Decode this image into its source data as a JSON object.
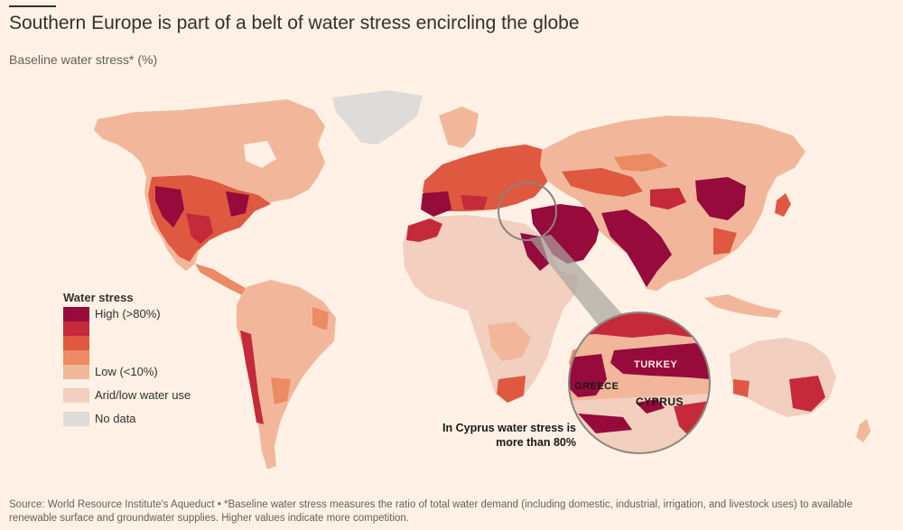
{
  "header": {
    "title": "Southern Europe is part of a belt of water stress encircling the globe",
    "subtitle": "Baseline water stress* (%)"
  },
  "legend": {
    "title": "Water stress",
    "high_label": "High (>80%)",
    "low_label": "Low (<10%)",
    "arid_label": "Arid/low water use",
    "nodata_label": "No data",
    "colors": {
      "high": "#960a3c",
      "step2": "#c42a3a",
      "step3": "#df5840",
      "step4": "#eb8a63",
      "low": "#f2b79a",
      "arid": "#f2cfbf",
      "nodata": "#dedbd8"
    }
  },
  "inset": {
    "labels": {
      "greece": "GREECE",
      "turkey": "TURKEY",
      "cyprus": "CYPRUS"
    },
    "callout": "In Cyprus water stress is more than 80%"
  },
  "source": "Source: World Resource Institute's Aqueduct • *Baseline water stress measures the ratio of total water demand (including domestic, industrial, irrigation, and livestock uses) to available renewable surface and groundwater supplies. Higher values indicate more competition."
}
